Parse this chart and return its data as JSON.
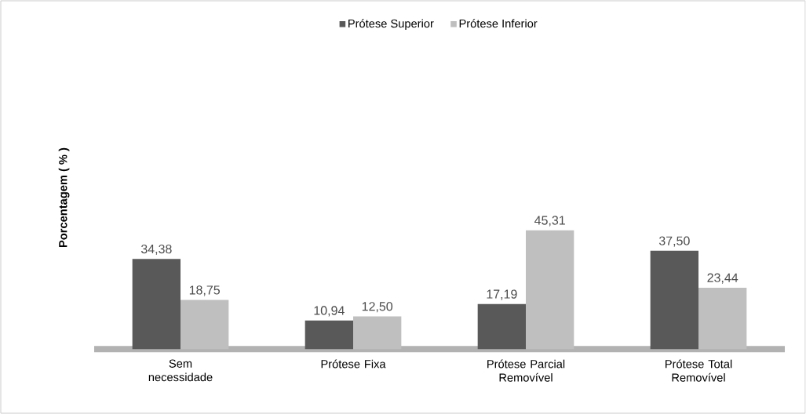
{
  "chart_data": {
    "type": "bar",
    "ylabel": "Porcentagem ( % )",
    "categories": [
      "Sem necessidade",
      "Prótese Fixa",
      "Prótese Parcial Removível",
      "Prótese Total Removível"
    ],
    "series": [
      {
        "name": "Prótese Superior",
        "color": "#595959",
        "values": [
          34.38,
          10.94,
          17.19,
          37.5
        ],
        "value_labels": [
          "34,38",
          "10,94",
          "17,19",
          "37,50"
        ]
      },
      {
        "name": "Prótese Inferior",
        "color": "#bfbfbf",
        "values": [
          18.75,
          12.5,
          45.31,
          23.44
        ],
        "value_labels": [
          "18,75",
          "12,50",
          "45,31",
          "23,44"
        ]
      }
    ],
    "tick_labels": "x",
    "legend": "top"
  }
}
